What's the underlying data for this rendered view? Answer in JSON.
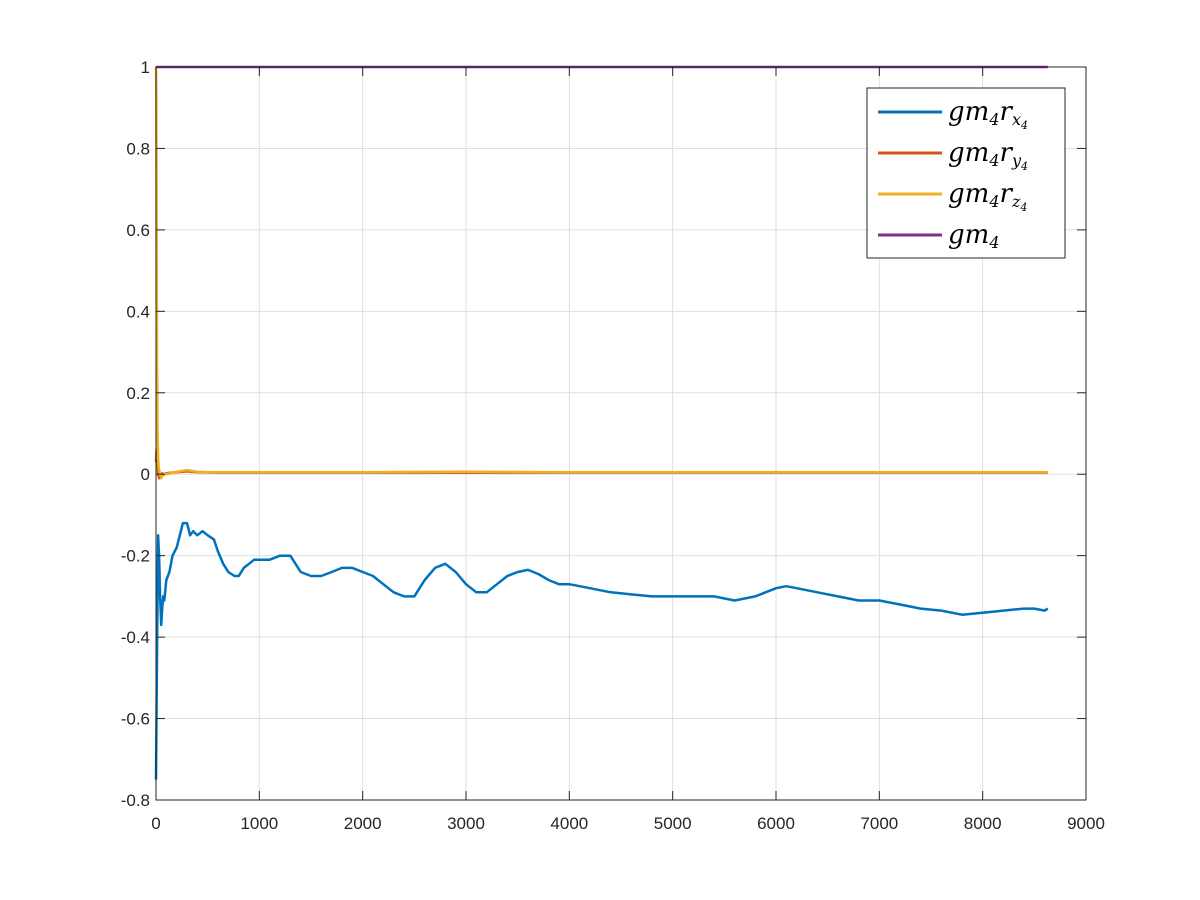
{
  "chart_data": {
    "type": "line",
    "xlim": [
      0,
      9000
    ],
    "ylim": [
      -0.8,
      1
    ],
    "xticks": [
      0,
      1000,
      2000,
      3000,
      4000,
      5000,
      6000,
      7000,
      8000,
      9000
    ],
    "yticks": [
      -0.8,
      -0.6,
      -0.4,
      -0.2,
      0,
      0.2,
      0.4,
      0.6,
      0.8,
      1
    ],
    "xtick_labels": [
      "0",
      "1000",
      "2000",
      "3000",
      "4000",
      "5000",
      "6000",
      "7000",
      "8000",
      "9000"
    ],
    "ytick_labels": [
      "-0.8",
      "-0.6",
      "-0.4",
      "-0.2",
      "0",
      "0.2",
      "0.4",
      "0.6",
      "0.8",
      "1"
    ],
    "grid": true,
    "legend_position": "top-right",
    "series": [
      {
        "name": "gm4rx4",
        "legend": {
          "base": "gm",
          "sub1": "4",
          "mid": "r",
          "sub2": "x",
          "subsub": "4"
        },
        "color": "#0072BD",
        "x": [
          0,
          10,
          20,
          30,
          40,
          50,
          60,
          70,
          80,
          100,
          130,
          160,
          200,
          230,
          260,
          300,
          330,
          360,
          400,
          450,
          500,
          560,
          600,
          650,
          700,
          760,
          800,
          850,
          900,
          950,
          1000,
          1100,
          1200,
          1300,
          1400,
          1500,
          1600,
          1700,
          1800,
          1900,
          2000,
          2100,
          2200,
          2300,
          2400,
          2500,
          2600,
          2700,
          2800,
          2900,
          3000,
          3100,
          3200,
          3300,
          3400,
          3500,
          3600,
          3700,
          3800,
          3900,
          4000,
          4200,
          4400,
          4600,
          4800,
          5000,
          5200,
          5400,
          5600,
          5800,
          6000,
          6100,
          6200,
          6400,
          6600,
          6800,
          7000,
          7200,
          7400,
          7600,
          7800,
          8000,
          8200,
          8400,
          8500,
          8600,
          8630
        ],
        "y": [
          -0.75,
          -0.45,
          -0.15,
          -0.2,
          -0.3,
          -0.37,
          -0.33,
          -0.3,
          -0.31,
          -0.26,
          -0.24,
          -0.2,
          -0.18,
          -0.15,
          -0.12,
          -0.12,
          -0.15,
          -0.14,
          -0.15,
          -0.14,
          -0.15,
          -0.16,
          -0.19,
          -0.22,
          -0.24,
          -0.25,
          -0.25,
          -0.23,
          -0.22,
          -0.21,
          -0.21,
          -0.21,
          -0.2,
          -0.2,
          -0.24,
          -0.25,
          -0.25,
          -0.24,
          -0.23,
          -0.23,
          -0.24,
          -0.25,
          -0.27,
          -0.29,
          -0.3,
          -0.3,
          -0.26,
          -0.23,
          -0.22,
          -0.24,
          -0.27,
          -0.29,
          -0.29,
          -0.27,
          -0.25,
          -0.24,
          -0.235,
          -0.245,
          -0.26,
          -0.27,
          -0.27,
          -0.28,
          -0.29,
          -0.295,
          -0.3,
          -0.3,
          -0.3,
          -0.3,
          -0.31,
          -0.3,
          -0.28,
          -0.275,
          -0.28,
          -0.29,
          -0.3,
          -0.31,
          -0.31,
          -0.32,
          -0.33,
          -0.335,
          -0.345,
          -0.34,
          -0.335,
          -0.33,
          -0.33,
          -0.335,
          -0.33
        ]
      },
      {
        "name": "gm4ry4",
        "legend": {
          "base": "gm",
          "sub1": "4",
          "mid": "r",
          "sub2": "y",
          "subsub": "4"
        },
        "color": "#D95319",
        "x": [
          0,
          5,
          10,
          20,
          30,
          40,
          50,
          60,
          80,
          100,
          150,
          200,
          300,
          400,
          600,
          1000,
          2000,
          3000,
          4000,
          5000,
          6000,
          7000,
          8000,
          8630
        ],
        "y": [
          0.03,
          0.06,
          0.05,
          0.0,
          -0.01,
          -0.005,
          0.0,
          0.002,
          0.0,
          0.002,
          0.004,
          0.005,
          0.007,
          0.005,
          0.004,
          0.004,
          0.004,
          0.004,
          0.004,
          0.004,
          0.004,
          0.004,
          0.004,
          0.004
        ]
      },
      {
        "name": "gm4rz4",
        "legend": {
          "base": "gm",
          "sub1": "4",
          "mid": "r",
          "sub2": "z",
          "subsub": "4"
        },
        "color": "#EDB120",
        "x": [
          0,
          3,
          6,
          10,
          15,
          20,
          25,
          30,
          40,
          50,
          60,
          80,
          100,
          150,
          200,
          250,
          300,
          350,
          400,
          500,
          700,
          1000,
          2000,
          3000,
          4000,
          5000,
          6000,
          7000,
          8000,
          8630
        ],
        "y": [
          1.0,
          0.95,
          0.6,
          0.3,
          0.1,
          0.04,
          0.02,
          0.01,
          0.0,
          -0.01,
          -0.005,
          0.0,
          0.0,
          0.003,
          0.006,
          0.008,
          0.01,
          0.008,
          0.006,
          0.005,
          0.005,
          0.005,
          0.005,
          0.006,
          0.005,
          0.005,
          0.005,
          0.005,
          0.005,
          0.005
        ]
      },
      {
        "name": "gm4",
        "legend": {
          "base": "gm",
          "sub1": "4",
          "mid": "",
          "sub2": "",
          "subsub": ""
        },
        "color": "#7E2F8E",
        "x": [
          0,
          8630
        ],
        "y": [
          1.0,
          1.0
        ]
      }
    ]
  }
}
